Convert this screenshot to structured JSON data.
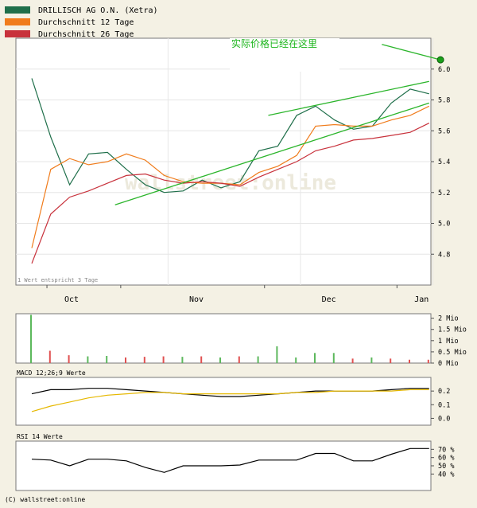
{
  "legend": [
    {
      "label": "DRILLISCH AG O.N. (Xetra)",
      "color": "#1f6f4a"
    },
    {
      "label": "Durchschnitt 12 Tage",
      "color": "#f07c1c"
    },
    {
      "label": "Durchschnitt 26 Tage",
      "color": "#c8323c"
    }
  ],
  "annotation": "实际价格已经在这里",
  "watermark": "wallstreet:online",
  "footnote": "1 Wert entspricht 3 Tage",
  "copyright": "(C) wallstreet:online",
  "panels": {
    "macd_label": "MACD 12;26;9 Werte",
    "rsi_label": "RSI 14 Werte"
  },
  "chart_data": [
    {
      "type": "line",
      "title": "",
      "ylim": [
        4.6,
        6.2
      ],
      "yticks": [
        "6.0",
        "5.8",
        "5.6",
        "5.4",
        "5.2",
        "5.0",
        "4.8"
      ],
      "xticks": [
        "Oct",
        "Nov",
        "Dec",
        "Jan"
      ],
      "series": [
        {
          "name": "DRILLISCH AG O.N. (Xetra)",
          "color": "#1f6f4a",
          "values": [
            5.94,
            5.56,
            5.25,
            5.45,
            5.46,
            5.35,
            5.25,
            5.2,
            5.21,
            5.28,
            5.23,
            5.27,
            5.47,
            5.5,
            5.7,
            5.76,
            5.67,
            5.61,
            5.63,
            5.78,
            5.87,
            5.84
          ]
        },
        {
          "name": "Durchschnitt 12 Tage",
          "color": "#f07c1c",
          "values": [
            4.84,
            5.35,
            5.42,
            5.38,
            5.4,
            5.45,
            5.41,
            5.31,
            5.27,
            5.26,
            5.26,
            5.25,
            5.33,
            5.37,
            5.44,
            5.63,
            5.64,
            5.63,
            5.63,
            5.67,
            5.7,
            5.76
          ]
        },
        {
          "name": "Durchschnitt 26 Tage",
          "color": "#c8323c",
          "values": [
            4.74,
            5.06,
            5.17,
            5.21,
            5.26,
            5.31,
            5.32,
            5.28,
            5.26,
            5.27,
            5.26,
            5.24,
            5.3,
            5.35,
            5.4,
            5.47,
            5.5,
            5.54,
            5.55,
            5.57,
            5.59,
            5.65
          ]
        },
        {
          "name": "",
          "color": "#2bb52b",
          "type": "trendline",
          "values": [
            [
              4.4,
              5.12
            ],
            [
              21.0,
              5.78
            ]
          ]
        },
        {
          "name": "",
          "color": "#2bb52b",
          "type": "trendline",
          "values": [
            [
              12.5,
              5.7
            ],
            [
              21.0,
              5.92
            ]
          ]
        },
        {
          "name": "",
          "color": "#2bb52b",
          "type": "trendline",
          "values": [
            [
              18.5,
              6.16
            ],
            [
              21.6,
              6.06
            ]
          ]
        }
      ],
      "highlight_point": {
        "x": 21.6,
        "y": 6.06,
        "color": "#1aa01a"
      }
    },
    {
      "type": "bar",
      "title": "",
      "ylim": [
        0,
        2.2
      ],
      "yticks": [
        "2 Mio",
        "1.5 Mio",
        "1 Mio",
        "0.5 Mio",
        "0 Mio"
      ],
      "values": [
        2.15,
        0.55,
        0.35,
        0.3,
        0.32,
        0.25,
        0.28,
        0.3,
        0.28,
        0.3,
        0.25,
        0.3,
        0.3,
        0.75,
        0.25,
        0.45,
        0.45,
        0.2,
        0.25,
        0.2,
        0.15,
        0.15
      ],
      "colors": [
        "#5cb85c",
        "#e05050",
        "#e05050",
        "#5cb85c",
        "#5cb85c",
        "#e05050",
        "#e05050",
        "#e05050",
        "#5cb85c",
        "#e05050",
        "#5cb85c",
        "#e05050",
        "#5cb85c",
        "#5cb85c",
        "#5cb85c",
        "#5cb85c",
        "#5cb85c",
        "#e05050",
        "#5cb85c",
        "#e05050",
        "#e05050",
        "#e05050"
      ]
    },
    {
      "type": "line",
      "title": "MACD 12;26;9 Werte",
      "ylim": [
        -0.05,
        0.3
      ],
      "yticks": [
        "0.2",
        "0.1",
        "0.0"
      ],
      "series": [
        {
          "name": "",
          "color": "#000000",
          "values": [
            0.18,
            0.21,
            0.21,
            0.22,
            0.22,
            0.21,
            0.2,
            0.19,
            0.18,
            0.17,
            0.16,
            0.16,
            0.17,
            0.18,
            0.19,
            0.2,
            0.2,
            0.2,
            0.2,
            0.21,
            0.22,
            0.22
          ]
        },
        {
          "name": "",
          "color": "#e6b800",
          "values": [
            0.05,
            0.09,
            0.12,
            0.15,
            0.17,
            0.18,
            0.19,
            0.19,
            0.18,
            0.18,
            0.18,
            0.18,
            0.18,
            0.18,
            0.19,
            0.19,
            0.2,
            0.2,
            0.2,
            0.2,
            0.21,
            0.21
          ]
        }
      ]
    },
    {
      "type": "line",
      "title": "RSI 14 Werte",
      "ylim": [
        20,
        80
      ],
      "yticks": [
        "70 %",
        "60 %",
        "50 %",
        "40 %"
      ],
      "series": [
        {
          "name": "",
          "color": "#000000",
          "values": [
            58,
            57,
            50,
            58,
            58,
            56,
            48,
            42,
            50,
            50,
            50,
            51,
            57,
            57,
            57,
            65,
            65,
            56,
            56,
            64,
            71,
            71
          ]
        }
      ]
    }
  ]
}
